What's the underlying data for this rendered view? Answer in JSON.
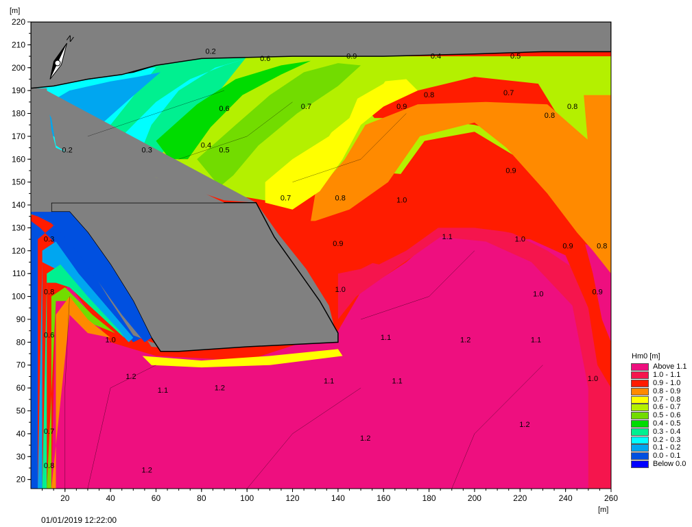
{
  "chart_data": {
    "type": "heatmap",
    "title": "",
    "x_unit": "[m]",
    "y_unit": "[m]",
    "xlim": [
      5,
      260
    ],
    "ylim": [
      16,
      220
    ],
    "x_ticks": [
      20,
      40,
      60,
      80,
      100,
      120,
      140,
      160,
      180,
      200,
      220,
      240,
      260
    ],
    "y_ticks": [
      20,
      30,
      40,
      50,
      60,
      70,
      80,
      90,
      100,
      110,
      120,
      130,
      140,
      150,
      160,
      170,
      180,
      190,
      200,
      210,
      220
    ],
    "legend": {
      "title": "Hm0 [m]",
      "placement": "right",
      "items": [
        {
          "label": "Above 1.1",
          "color": "#ee0f7f"
        },
        {
          "label": "1.0 - 1.1",
          "color": "#f5154d"
        },
        {
          "label": "0.9 - 1.0",
          "color": "#ff1c00"
        },
        {
          "label": "0.8 - 0.9",
          "color": "#ff8a00"
        },
        {
          "label": "0.7 - 0.8",
          "color": "#ffff00"
        },
        {
          "label": "0.6 - 0.7",
          "color": "#b4f000"
        },
        {
          "label": "0.5 - 0.6",
          "color": "#72dc00"
        },
        {
          "label": "0.4 - 0.5",
          "color": "#00dc00"
        },
        {
          "label": "0.3 - 0.4",
          "color": "#00f090"
        },
        {
          "label": "0.2 - 0.3",
          "color": "#00ffff"
        },
        {
          "label": "0.1 - 0.2",
          "color": "#00a6f0"
        },
        {
          "label": "0.0 - 0.1",
          "color": "#0050e0"
        },
        {
          "label": "Below 0.0",
          "color": "#0000ff"
        }
      ]
    },
    "contour_labels": [
      {
        "text": "0.2",
        "x": 84,
        "y": 206
      },
      {
        "text": "0.6",
        "x": 108,
        "y": 203
      },
      {
        "text": "0.9",
        "x": 146,
        "y": 204
      },
      {
        "text": "0.4",
        "x": 183,
        "y": 204
      },
      {
        "text": "0.5",
        "x": 218,
        "y": 204
      },
      {
        "text": "0.8",
        "x": 180,
        "y": 187
      },
      {
        "text": "0.7",
        "x": 215,
        "y": 188
      },
      {
        "text": "0.9",
        "x": 168,
        "y": 182
      },
      {
        "text": "0.8",
        "x": 243,
        "y": 182
      },
      {
        "text": "0.8",
        "x": 233,
        "y": 178
      },
      {
        "text": "0.6",
        "x": 90,
        "y": 181
      },
      {
        "text": "0.7",
        "x": 126,
        "y": 182
      },
      {
        "text": "0.3",
        "x": 56,
        "y": 163
      },
      {
        "text": "0.4",
        "x": 82,
        "y": 165
      },
      {
        "text": "0.5",
        "x": 90,
        "y": 163
      },
      {
        "text": "0.2",
        "x": 21,
        "y": 163
      },
      {
        "text": "0.7",
        "x": 117,
        "y": 142
      },
      {
        "text": "0.8",
        "x": 141,
        "y": 142
      },
      {
        "text": "0.9",
        "x": 216,
        "y": 154
      },
      {
        "text": "1.0",
        "x": 168,
        "y": 141
      },
      {
        "text": "0.9",
        "x": 140,
        "y": 122
      },
      {
        "text": "1.1",
        "x": 188,
        "y": 125
      },
      {
        "text": "1.0",
        "x": 220,
        "y": 124
      },
      {
        "text": "0.9",
        "x": 241,
        "y": 121
      },
      {
        "text": "0.8",
        "x": 256,
        "y": 121
      },
      {
        "text": "1.0",
        "x": 141,
        "y": 102
      },
      {
        "text": "1.0",
        "x": 228,
        "y": 100
      },
      {
        "text": "0.9",
        "x": 254,
        "y": 101
      },
      {
        "text": "0.3",
        "x": 13,
        "y": 124
      },
      {
        "text": "0.8",
        "x": 13,
        "y": 101
      },
      {
        "text": "0.6",
        "x": 13,
        "y": 82
      },
      {
        "text": "1.0",
        "x": 40,
        "y": 80
      },
      {
        "text": "1.1",
        "x": 161,
        "y": 81
      },
      {
        "text": "1.2",
        "x": 196,
        "y": 80
      },
      {
        "text": "1.1",
        "x": 227,
        "y": 80
      },
      {
        "text": "1.0",
        "x": 252,
        "y": 63
      },
      {
        "text": "1.1",
        "x": 166,
        "y": 62
      },
      {
        "text": "1.1",
        "x": 136,
        "y": 62
      },
      {
        "text": "1.2",
        "x": 49,
        "y": 64
      },
      {
        "text": "1.1",
        "x": 63,
        "y": 58
      },
      {
        "text": "1.2",
        "x": 88,
        "y": 59
      },
      {
        "text": "0.7",
        "x": 13,
        "y": 40
      },
      {
        "text": "1.2",
        "x": 152,
        "y": 37
      },
      {
        "text": "1.2",
        "x": 222,
        "y": 43
      },
      {
        "text": "0.8",
        "x": 13,
        "y": 25
      },
      {
        "text": "1.2",
        "x": 56,
        "y": 23
      }
    ]
  },
  "timestamp": "01/01/2019 12:22:00",
  "compass_label": "N"
}
